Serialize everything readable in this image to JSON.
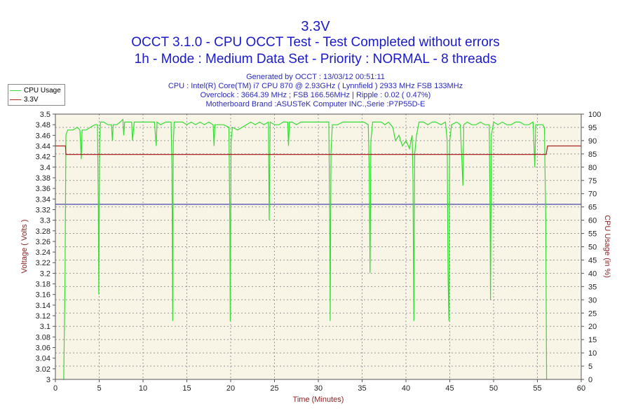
{
  "chart_data": {
    "type": "line",
    "title": "3.3V",
    "subtitle_lines": [
      "OCCT 3.1.0 - CPU OCCT Test - Test Completed without errors",
      "1h - Mode : Medium Data Set - Priority : NORMAL - 8 threads"
    ],
    "info_lines": [
      "Generated by OCCT : 13/03/12 00:51:11",
      "CPU : Intel(R) Core(TM) i7 CPU 870 @ 2.93GHz ( Lynnfield ) 2933 MHz FSB 133MHz",
      "Overclock : 3664.39 MHz ; FSB 166.56MHz | Ripple : 0.02 ( 0.47%)",
      "Motherboard Brand :ASUSTeK Computer INC.,Serie :P7P55D-E"
    ],
    "xlabel": "Time (Minutes)",
    "ylabel": "Voltage ( Volts )",
    "y2label": "CPU Usage (in %)",
    "xlim": [
      0,
      60
    ],
    "ylim": [
      3.0,
      3.5
    ],
    "y2lim": [
      0,
      100
    ],
    "xticks": [
      "0",
      "5",
      "10",
      "15",
      "20",
      "25",
      "30",
      "35",
      "40",
      "45",
      "50",
      "55",
      "60"
    ],
    "yticks": [
      "3",
      "3.02",
      "3.04",
      "3.06",
      "3.08",
      "3.1",
      "3.12",
      "3.14",
      "3.16",
      "3.18",
      "3.2",
      "3.22",
      "3.24",
      "3.26",
      "3.28",
      "3.3",
      "3.32",
      "3.34",
      "3.36",
      "3.38",
      "3.4",
      "3.42",
      "3.44",
      "3.46",
      "3.48",
      "3.5"
    ],
    "y2ticks": [
      "0",
      "5",
      "10",
      "15",
      "20",
      "25",
      "30",
      "35",
      "40",
      "45",
      "50",
      "55",
      "60",
      "65",
      "70",
      "75",
      "80",
      "85",
      "90",
      "95",
      "100"
    ],
    "grid": true,
    "legend_position": "top-left",
    "reference_line": {
      "value": 3.33,
      "color": "#1a1a99"
    },
    "series": [
      {
        "name": "CPU Usage",
        "axis": "right",
        "color": "#33dd33",
        "points": [
          [
            0.95,
            0
          ],
          [
            1.1,
            40
          ],
          [
            1.2,
            92
          ],
          [
            1.4,
            94
          ],
          [
            2,
            94
          ],
          [
            2.5,
            95
          ],
          [
            2.8,
            94
          ],
          [
            2.95,
            83
          ],
          [
            3.05,
            94
          ],
          [
            3.5,
            94
          ],
          [
            4,
            95
          ],
          [
            4.5,
            96
          ],
          [
            4.8,
            96
          ],
          [
            4.9,
            65
          ],
          [
            4.95,
            32
          ],
          [
            5.05,
            90
          ],
          [
            5.15,
            97
          ],
          [
            5.5,
            97
          ],
          [
            6,
            96
          ],
          [
            6.4,
            96
          ],
          [
            6.5,
            90
          ],
          [
            6.6,
            96
          ],
          [
            7,
            96
          ],
          [
            7.4,
            97
          ],
          [
            7.7,
            98
          ],
          [
            7.8,
            92
          ],
          [
            7.9,
            97
          ],
          [
            8.3,
            97
          ],
          [
            8.7,
            97
          ],
          [
            8.8,
            90
          ],
          [
            9,
            97
          ],
          [
            9.5,
            97
          ],
          [
            10,
            97
          ],
          [
            10.4,
            97
          ],
          [
            11,
            97
          ],
          [
            11.3,
            97
          ],
          [
            11.5,
            88
          ],
          [
            11.6,
            97
          ],
          [
            12,
            96
          ],
          [
            12.6,
            97
          ],
          [
            13.2,
            97
          ],
          [
            13.3,
            80
          ],
          [
            13.38,
            22
          ],
          [
            13.45,
            88
          ],
          [
            13.55,
            97
          ],
          [
            14,
            97
          ],
          [
            14.5,
            97
          ],
          [
            15,
            96
          ],
          [
            15.5,
            97
          ],
          [
            16,
            96
          ],
          [
            16.5,
            97
          ],
          [
            17,
            96
          ],
          [
            17.5,
            97
          ],
          [
            18,
            96
          ],
          [
            18.1,
            88
          ],
          [
            18.2,
            96
          ],
          [
            18.6,
            96
          ],
          [
            19.2,
            96
          ],
          [
            19.8,
            95
          ],
          [
            19.9,
            60
          ],
          [
            19.95,
            22
          ],
          [
            20.05,
            90
          ],
          [
            20.2,
            95
          ],
          [
            20.8,
            94
          ],
          [
            21.3,
            95
          ],
          [
            21.8,
            96
          ],
          [
            22.3,
            97
          ],
          [
            22.8,
            96
          ],
          [
            23.3,
            97
          ],
          [
            23.8,
            96
          ],
          [
            24.3,
            97
          ],
          [
            24.4,
            60
          ],
          [
            24.5,
            97
          ],
          [
            25,
            96
          ],
          [
            25.5,
            96
          ],
          [
            26,
            97
          ],
          [
            26.5,
            97
          ],
          [
            26.6,
            88
          ],
          [
            26.7,
            97
          ],
          [
            27,
            97
          ],
          [
            27.5,
            96
          ],
          [
            28,
            97
          ],
          [
            28.5,
            97
          ],
          [
            29,
            97
          ],
          [
            29.5,
            97
          ],
          [
            30,
            97
          ],
          [
            30.5,
            97
          ],
          [
            31.2,
            97
          ],
          [
            31.3,
            60
          ],
          [
            31.35,
            22
          ],
          [
            31.45,
            86
          ],
          [
            31.6,
            96
          ],
          [
            32.2,
            96
          ],
          [
            32.8,
            97
          ],
          [
            33.4,
            97
          ],
          [
            34,
            97
          ],
          [
            34.6,
            97
          ],
          [
            35.2,
            97
          ],
          [
            35.7,
            96
          ],
          [
            35.8,
            80
          ],
          [
            35.9,
            40
          ],
          [
            36,
            90
          ],
          [
            36.2,
            97
          ],
          [
            36.8,
            97
          ],
          [
            37.2,
            97
          ],
          [
            37.6,
            96
          ],
          [
            38,
            97
          ],
          [
            38.5,
            95
          ],
          [
            38.8,
            90
          ],
          [
            39.2,
            92
          ],
          [
            39.6,
            88
          ],
          [
            40,
            90
          ],
          [
            40.4,
            87
          ],
          [
            40.7,
            92
          ],
          [
            40.8,
            76
          ],
          [
            40.9,
            22
          ],
          [
            41,
            85
          ],
          [
            41.2,
            92
          ],
          [
            41.5,
            97
          ],
          [
            42,
            97
          ],
          [
            42.5,
            96
          ],
          [
            43,
            97
          ],
          [
            43.4,
            97
          ],
          [
            44,
            96
          ],
          [
            44.5,
            97
          ],
          [
            44.7,
            90
          ],
          [
            44.8,
            40
          ],
          [
            44.9,
            22
          ],
          [
            45,
            90
          ],
          [
            45.2,
            96
          ],
          [
            45.8,
            97
          ],
          [
            46.2,
            96
          ],
          [
            46.5,
            73
          ],
          [
            46.6,
            96
          ],
          [
            47,
            97
          ],
          [
            47.5,
            96
          ],
          [
            48,
            96
          ],
          [
            48.5,
            97
          ],
          [
            49,
            96
          ],
          [
            49.5,
            96
          ],
          [
            49.6,
            60
          ],
          [
            49.65,
            30
          ],
          [
            49.75,
            92
          ],
          [
            50,
            97
          ],
          [
            50.5,
            96
          ],
          [
            51,
            97
          ],
          [
            51.5,
            96
          ],
          [
            52,
            96
          ],
          [
            52.5,
            97
          ],
          [
            53,
            97
          ],
          [
            53.5,
            96
          ],
          [
            54,
            96
          ],
          [
            54.5,
            97
          ],
          [
            54.7,
            80
          ],
          [
            54.8,
            96
          ],
          [
            55.2,
            96
          ],
          [
            55.6,
            96
          ],
          [
            55.8,
            95
          ],
          [
            55.95,
            60
          ],
          [
            56.05,
            0
          ]
        ]
      },
      {
        "name": "3.3V",
        "axis": "left",
        "color": "#aa2222",
        "points": [
          [
            0,
            3.44
          ],
          [
            1.15,
            3.44
          ],
          [
            1.2,
            3.424
          ],
          [
            56.0,
            3.424
          ],
          [
            56.15,
            3.44
          ],
          [
            60,
            3.44
          ]
        ]
      }
    ]
  }
}
